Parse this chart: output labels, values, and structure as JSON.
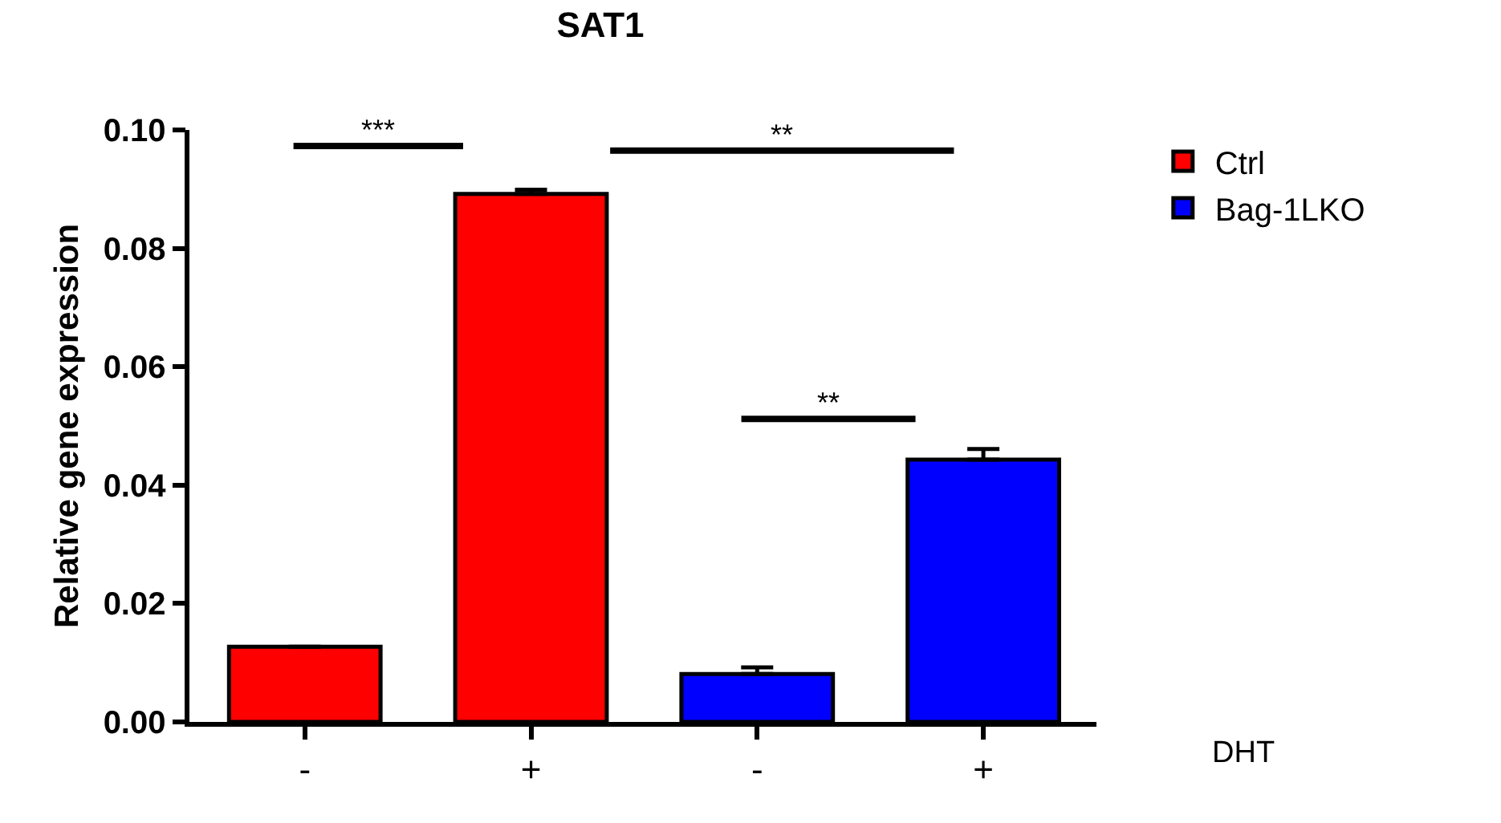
{
  "chart_data": {
    "type": "bar",
    "title": "SAT1",
    "xlabel": "DHT",
    "ylabel": "Relative gene expression",
    "categories": [
      "-",
      "+",
      "-",
      "+"
    ],
    "series": [
      {
        "name": "Ctrl",
        "color": "#ff0000",
        "values": [
          0.0127,
          0.0892,
          null,
          null
        ],
        "errors": [
          null,
          [
            0.0892,
            0.0899
          ],
          null,
          null
        ]
      },
      {
        "name": "Bag-1LKO",
        "color": "#0000ff",
        "values": [
          null,
          null,
          0.0081,
          0.0443
        ],
        "errors": [
          null,
          null,
          [
            0.0081,
            0.0092
          ],
          [
            0.0443,
            0.0461
          ]
        ]
      }
    ],
    "ylim": [
      0,
      0.1
    ],
    "yticks": [
      {
        "value": 0,
        "label": "0.00"
      },
      {
        "value": 0.02,
        "label": "0.02"
      },
      {
        "value": 0.04,
        "label": "0.04"
      },
      {
        "value": 0.06,
        "label": "0.06"
      },
      {
        "value": 0.08,
        "label": "0.08"
      },
      {
        "value": 0.1,
        "label": "0.10"
      }
    ],
    "annotations": [
      "***",
      "**",
      "**"
    ],
    "legend": "top right"
  }
}
